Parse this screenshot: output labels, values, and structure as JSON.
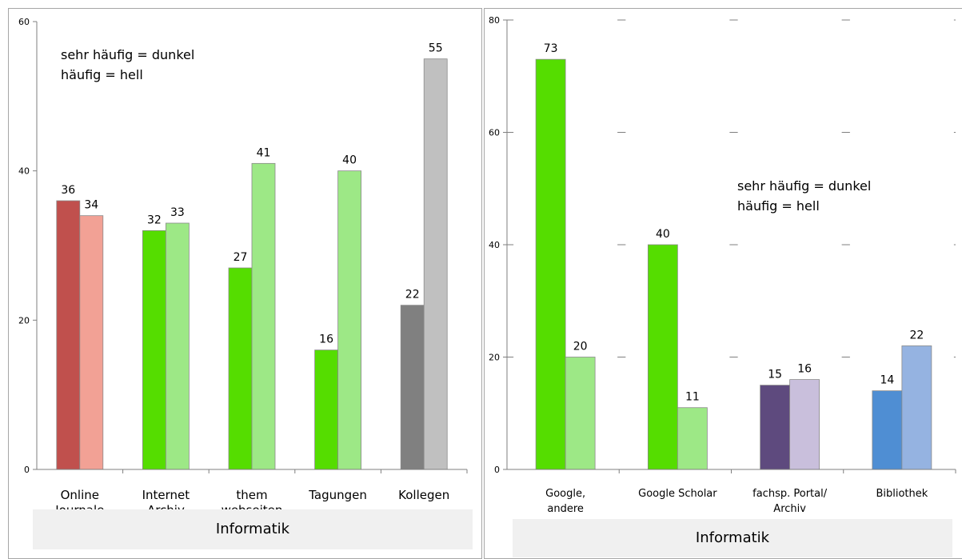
{
  "chart_data": [
    {
      "type": "bar",
      "categories": [
        [
          "Online",
          "Journale"
        ],
        [
          "Internet",
          "Archiv"
        ],
        [
          "them",
          "webseiten"
        ],
        [
          "Tagungen"
        ],
        [
          "Kollegen"
        ]
      ],
      "series": [
        {
          "label": "sehr häufig",
          "values": [
            36,
            32,
            27,
            16,
            22
          ]
        },
        {
          "label": "häufig",
          "values": [
            34,
            33,
            41,
            40,
            55
          ]
        }
      ],
      "colors": [
        [
          "#c0504d",
          "#f2a195"
        ],
        [
          "#55dd00",
          "#9de886"
        ],
        [
          "#55dd00",
          "#9de886"
        ],
        [
          "#55dd00",
          "#9de886"
        ],
        [
          "#808080",
          "#c0c0c0"
        ]
      ],
      "ylim": [
        0,
        60
      ],
      "yticks": [
        0,
        20,
        40,
        60
      ],
      "annotation": [
        "sehr häufig = dunkel",
        "häufig = hell"
      ],
      "footer": "Informatik"
    },
    {
      "type": "bar",
      "categories": [
        [
          "Google,",
          "andere"
        ],
        [
          "Google Scholar"
        ],
        [
          "fachsp. Portal/",
          "Archiv"
        ],
        [
          "Bibliothek"
        ]
      ],
      "series": [
        {
          "label": "sehr häufig",
          "values": [
            73,
            40,
            15,
            14
          ]
        },
        {
          "label": "häufig",
          "values": [
            20,
            11,
            16,
            22
          ]
        }
      ],
      "colors": [
        [
          "#55dd00",
          "#9de886"
        ],
        [
          "#55dd00",
          "#9de886"
        ],
        [
          "#5e4a7e",
          "#c9bfdc"
        ],
        [
          "#4f8ed3",
          "#95b3e1"
        ]
      ],
      "ylim": [
        0,
        80
      ],
      "yticks": [
        0,
        20,
        40,
        60,
        80
      ],
      "annotation": [
        "sehr häufig = dunkel",
        "häufig = hell"
      ],
      "footer": "Informatik"
    }
  ]
}
